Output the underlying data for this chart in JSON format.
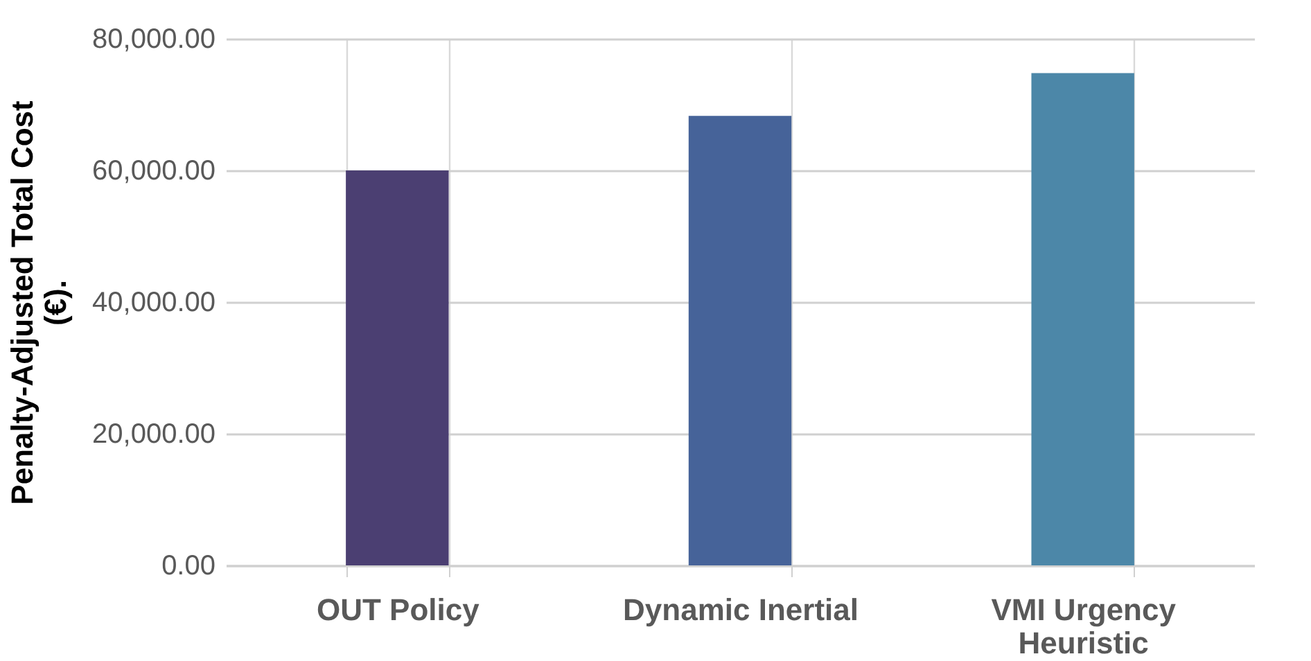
{
  "chart_data": {
    "type": "bar",
    "ylabel": "Penalty-Adjusted Total Cost (€).",
    "categories": [
      "OUT Policy",
      "Dynamic Inertial",
      "VMI Urgency Heuristic"
    ],
    "values": [
      60000,
      68300,
      74800
    ],
    "colors": [
      "#4b3f72",
      "#466399",
      "#4c87a8"
    ],
    "ylim": [
      0,
      80000
    ],
    "yticks": [
      {
        "value": 0,
        "label": "0.00"
      },
      {
        "value": 20000,
        "label": "20,000.00"
      },
      {
        "value": 40000,
        "label": "40,000.00"
      },
      {
        "value": 60000,
        "label": "60,000.00"
      },
      {
        "value": 80000,
        "label": "80,000.00"
      }
    ],
    "grid": true
  }
}
